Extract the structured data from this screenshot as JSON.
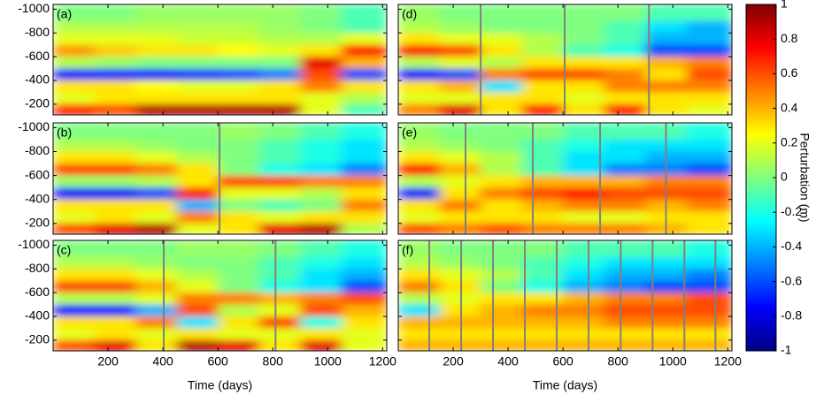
{
  "chart_data": [
    {
      "type": "heatmap",
      "label": "(a)",
      "xlim": [
        0,
        1215
      ],
      "xticks": [
        200,
        400,
        600,
        800,
        1000,
        1200
      ],
      "ylim": [
        -1040,
        -110
      ],
      "yticks": [
        -1000,
        -800,
        -600,
        -400,
        -200
      ],
      "x_bins": [
        0,
        150,
        300,
        450,
        600,
        750,
        900,
        1050,
        1215
      ],
      "y_bins": [
        -1040,
        -900,
        -800,
        -700,
        -600,
        -500,
        -400,
        -300,
        -200,
        -110
      ],
      "restarts": [],
      "z": [
        [
          0,
          0,
          0.05,
          0.05,
          0.05,
          0.05,
          0,
          -0.1
        ],
        [
          0.1,
          0.1,
          0.1,
          0.1,
          0.1,
          0.05,
          0,
          -0.1
        ],
        [
          0.2,
          0.2,
          0.2,
          0.15,
          0.15,
          0.1,
          0.1,
          0.2
        ],
        [
          0.45,
          0.35,
          0.3,
          0.3,
          0.25,
          0.2,
          0.3,
          0.7
        ],
        [
          0.1,
          0.05,
          0,
          0,
          0,
          0,
          0.8,
          0.4
        ],
        [
          -0.75,
          -0.7,
          -0.7,
          -0.65,
          -0.6,
          -0.5,
          0.6,
          -0.6
        ],
        [
          0.3,
          0.3,
          0.25,
          0.2,
          0.2,
          0.3,
          0.5,
          0.3
        ],
        [
          0.2,
          0.3,
          0.3,
          0.3,
          0.3,
          0.3,
          0.2,
          0.1
        ],
        [
          0.7,
          0.6,
          0.9,
          0.9,
          0.9,
          0.9,
          0.2,
          -0.1
        ]
      ]
    },
    {
      "type": "heatmap",
      "label": "(b)",
      "xlim": [
        0,
        1215
      ],
      "xticks": [
        200,
        400,
        600,
        800,
        1000,
        1200
      ],
      "ylim": [
        -1040,
        -110
      ],
      "yticks": [
        -1000,
        -800,
        -600,
        -400,
        -200
      ],
      "x_bins": [
        0,
        150,
        300,
        450,
        600,
        750,
        900,
        1050,
        1215
      ],
      "y_bins": [
        -1040,
        -900,
        -800,
        -700,
        -600,
        -500,
        -400,
        -300,
        -200,
        -110
      ],
      "restarts": [
        606
      ],
      "z": [
        [
          0,
          0,
          0,
          0,
          0.05,
          0,
          -0.1,
          -0.2
        ],
        [
          0.1,
          0.1,
          0.05,
          0,
          0,
          -0.1,
          -0.2,
          -0.3
        ],
        [
          0.3,
          0.3,
          0.2,
          0.1,
          0,
          -0.1,
          -0.2,
          -0.3
        ],
        [
          0.6,
          0.6,
          0.5,
          0.3,
          0,
          -0.2,
          -0.3,
          -0.5
        ],
        [
          0.05,
          0.05,
          0.1,
          0.3,
          0.6,
          0.6,
          0.5,
          0.5
        ],
        [
          -0.75,
          -0.75,
          -0.6,
          0.7,
          0.2,
          0.2,
          0.1,
          0.3
        ],
        [
          0.3,
          0.3,
          0.3,
          -0.4,
          0,
          -0.1,
          0,
          0.5
        ],
        [
          0.2,
          0.3,
          0.2,
          0.5,
          0.3,
          0.2,
          0.3,
          0.3
        ],
        [
          0.6,
          0.8,
          0.9,
          0.2,
          0.3,
          0.8,
          0.9,
          0.1
        ]
      ]
    },
    {
      "type": "heatmap",
      "label": "(c)",
      "xlim": [
        0,
        1215
      ],
      "xticks": [
        200,
        400,
        600,
        800,
        1000,
        1200
      ],
      "ylim": [
        -1040,
        -110
      ],
      "yticks": [
        -1000,
        -800,
        -600,
        -400,
        -200
      ],
      "xlabel": "Time (days)",
      "x_bins": [
        0,
        150,
        300,
        450,
        600,
        750,
        900,
        1050,
        1215
      ],
      "y_bins": [
        -1040,
        -900,
        -800,
        -700,
        -600,
        -500,
        -400,
        -300,
        -200,
        -110
      ],
      "restarts": [
        403,
        810
      ],
      "z": [
        [
          0,
          0,
          0,
          0.05,
          0.05,
          0,
          -0.1,
          -0.2
        ],
        [
          0.1,
          0.1,
          0.05,
          0,
          0,
          -0.1,
          -0.2,
          -0.3
        ],
        [
          0.3,
          0.3,
          0.2,
          0.1,
          0,
          -0.1,
          -0.3,
          -0.4
        ],
        [
          0.6,
          0.6,
          0.4,
          0.2,
          0,
          -0.2,
          -0.3,
          -0.6
        ],
        [
          0.1,
          0.1,
          0.2,
          0.5,
          0.5,
          0.4,
          0.5,
          0.6
        ],
        [
          -0.75,
          -0.75,
          -0.4,
          0.6,
          0.1,
          0.2,
          0.6,
          0.4
        ],
        [
          0.3,
          0.3,
          0.5,
          -0.3,
          0.3,
          0.6,
          -0.2,
          0.3
        ],
        [
          0.2,
          0.3,
          0.2,
          0.3,
          0.2,
          0.2,
          0.3,
          0.2
        ],
        [
          0.6,
          0.8,
          0.3,
          0.9,
          0.8,
          0.3,
          0.8,
          0.2
        ]
      ]
    },
    {
      "type": "heatmap",
      "label": "(d)",
      "xlim": [
        0,
        1215
      ],
      "xticks": [
        200,
        400,
        600,
        800,
        1000,
        1200
      ],
      "ylim": [
        -1040,
        -110
      ],
      "yticks": [
        -1000,
        -800,
        -600,
        -400,
        -200
      ],
      "x_bins": [
        0,
        150,
        300,
        450,
        600,
        750,
        900,
        1050,
        1215
      ],
      "y_bins": [
        -1040,
        -900,
        -800,
        -700,
        -600,
        -500,
        -400,
        -300,
        -200,
        -110
      ],
      "restarts": [
        300,
        606,
        913
      ],
      "z": [
        [
          0.05,
          0,
          0,
          0,
          0,
          0,
          -0.1,
          -0.1
        ],
        [
          0.1,
          0.05,
          0,
          0,
          0,
          -0.1,
          -0.3,
          -0.4
        ],
        [
          0.3,
          0.2,
          0.2,
          0.1,
          0,
          -0.1,
          -0.4,
          -0.4
        ],
        [
          0.7,
          0.6,
          0.3,
          0.1,
          -0.1,
          -0.2,
          -0.6,
          -0.6
        ],
        [
          0.1,
          0.2,
          0.1,
          0.3,
          0.3,
          0.3,
          0.4,
          0.5
        ],
        [
          -0.75,
          -0.6,
          0.5,
          0.6,
          0.6,
          0.5,
          0.3,
          0.6
        ],
        [
          0.3,
          0.4,
          -0.3,
          0.3,
          0.3,
          0.5,
          0.5,
          0.5
        ],
        [
          0.2,
          0.2,
          0.3,
          0.3,
          0.2,
          0.3,
          0.3,
          0.3
        ],
        [
          0.5,
          0.8,
          0.3,
          0.7,
          0.3,
          0.7,
          0.3,
          0.2
        ]
      ]
    },
    {
      "type": "heatmap",
      "label": "(e)",
      "xlim": [
        0,
        1215
      ],
      "xticks": [
        200,
        400,
        600,
        800,
        1000,
        1200
      ],
      "ylim": [
        -1040,
        -110
      ],
      "yticks": [
        -1000,
        -800,
        -600,
        -400,
        -200
      ],
      "x_bins": [
        0,
        150,
        300,
        450,
        600,
        750,
        900,
        1050,
        1215
      ],
      "y_bins": [
        -1040,
        -900,
        -800,
        -700,
        -600,
        -500,
        -400,
        -300,
        -200,
        -110
      ],
      "restarts": [
        245,
        490,
        735,
        975
      ],
      "z": [
        [
          0.05,
          0,
          0,
          0,
          -0.1,
          -0.1,
          -0.1,
          -0.2
        ],
        [
          0.1,
          0.05,
          0,
          -0.1,
          -0.2,
          -0.3,
          -0.3,
          -0.3
        ],
        [
          0.3,
          0.2,
          0.1,
          -0.1,
          -0.3,
          -0.3,
          -0.4,
          -0.4
        ],
        [
          0.7,
          0.4,
          0.1,
          -0.1,
          -0.3,
          -0.5,
          -0.5,
          -0.6
        ],
        [
          0.1,
          0.2,
          0.3,
          0.4,
          0.4,
          0.4,
          0.5,
          0.5
        ],
        [
          -0.7,
          0.3,
          0.5,
          0.6,
          0.7,
          0.6,
          0.6,
          0.6
        ],
        [
          0.3,
          0.5,
          0.3,
          0.4,
          0.5,
          0.5,
          0.4,
          0.5
        ],
        [
          0.2,
          0.3,
          0.3,
          0.3,
          0.2,
          0.2,
          0.3,
          0.3
        ],
        [
          0.6,
          0.5,
          0.6,
          0.5,
          0.5,
          0.5,
          0.4,
          0.3
        ]
      ]
    },
    {
      "type": "heatmap",
      "label": "(f)",
      "xlim": [
        0,
        1215
      ],
      "xticks": [
        200,
        400,
        600,
        800,
        1000,
        1200
      ],
      "ylim": [
        -1040,
        -110
      ],
      "yticks": [
        -1000,
        -800,
        -600,
        -400,
        -200
      ],
      "xlabel": "Time (days)",
      "x_bins": [
        0,
        150,
        300,
        450,
        600,
        750,
        900,
        1050,
        1215
      ],
      "y_bins": [
        -1040,
        -900,
        -800,
        -700,
        -600,
        -500,
        -400,
        -300,
        -200,
        -110
      ],
      "restarts": [
        113,
        229,
        345,
        461,
        577,
        693,
        810,
        926,
        1042,
        1155
      ],
      "z": [
        [
          0.05,
          0,
          0,
          0,
          -0.1,
          -0.1,
          -0.1,
          -0.2
        ],
        [
          0.1,
          0.05,
          0,
          -0.1,
          -0.2,
          -0.3,
          -0.3,
          -0.3
        ],
        [
          0.3,
          0.2,
          0.1,
          -0.1,
          -0.3,
          -0.4,
          -0.4,
          -0.5
        ],
        [
          0.5,
          0.3,
          0,
          -0.2,
          -0.4,
          -0.5,
          -0.6,
          -0.6
        ],
        [
          0.1,
          0.2,
          0.3,
          0.3,
          0.4,
          0.5,
          0.5,
          0.6
        ],
        [
          -0.3,
          0.3,
          0.4,
          0.5,
          0.5,
          0.6,
          0.6,
          0.6
        ],
        [
          0.4,
          0.4,
          0.4,
          0.4,
          0.4,
          0.5,
          0.5,
          0.5
        ],
        [
          0.3,
          0.3,
          0.3,
          0.3,
          0.3,
          0.3,
          0.3,
          0.3
        ],
        [
          0.4,
          0.4,
          0.4,
          0.4,
          0.4,
          0.4,
          0.4,
          0.4
        ]
      ]
    }
  ],
  "colorbar": {
    "label": "Perturbation (m)",
    "clim": [
      -1,
      1
    ],
    "ticks": [
      1,
      0.8,
      0.6,
      0.4,
      0.2,
      0,
      -0.2,
      -0.4,
      -0.6,
      -0.8,
      -1
    ]
  }
}
